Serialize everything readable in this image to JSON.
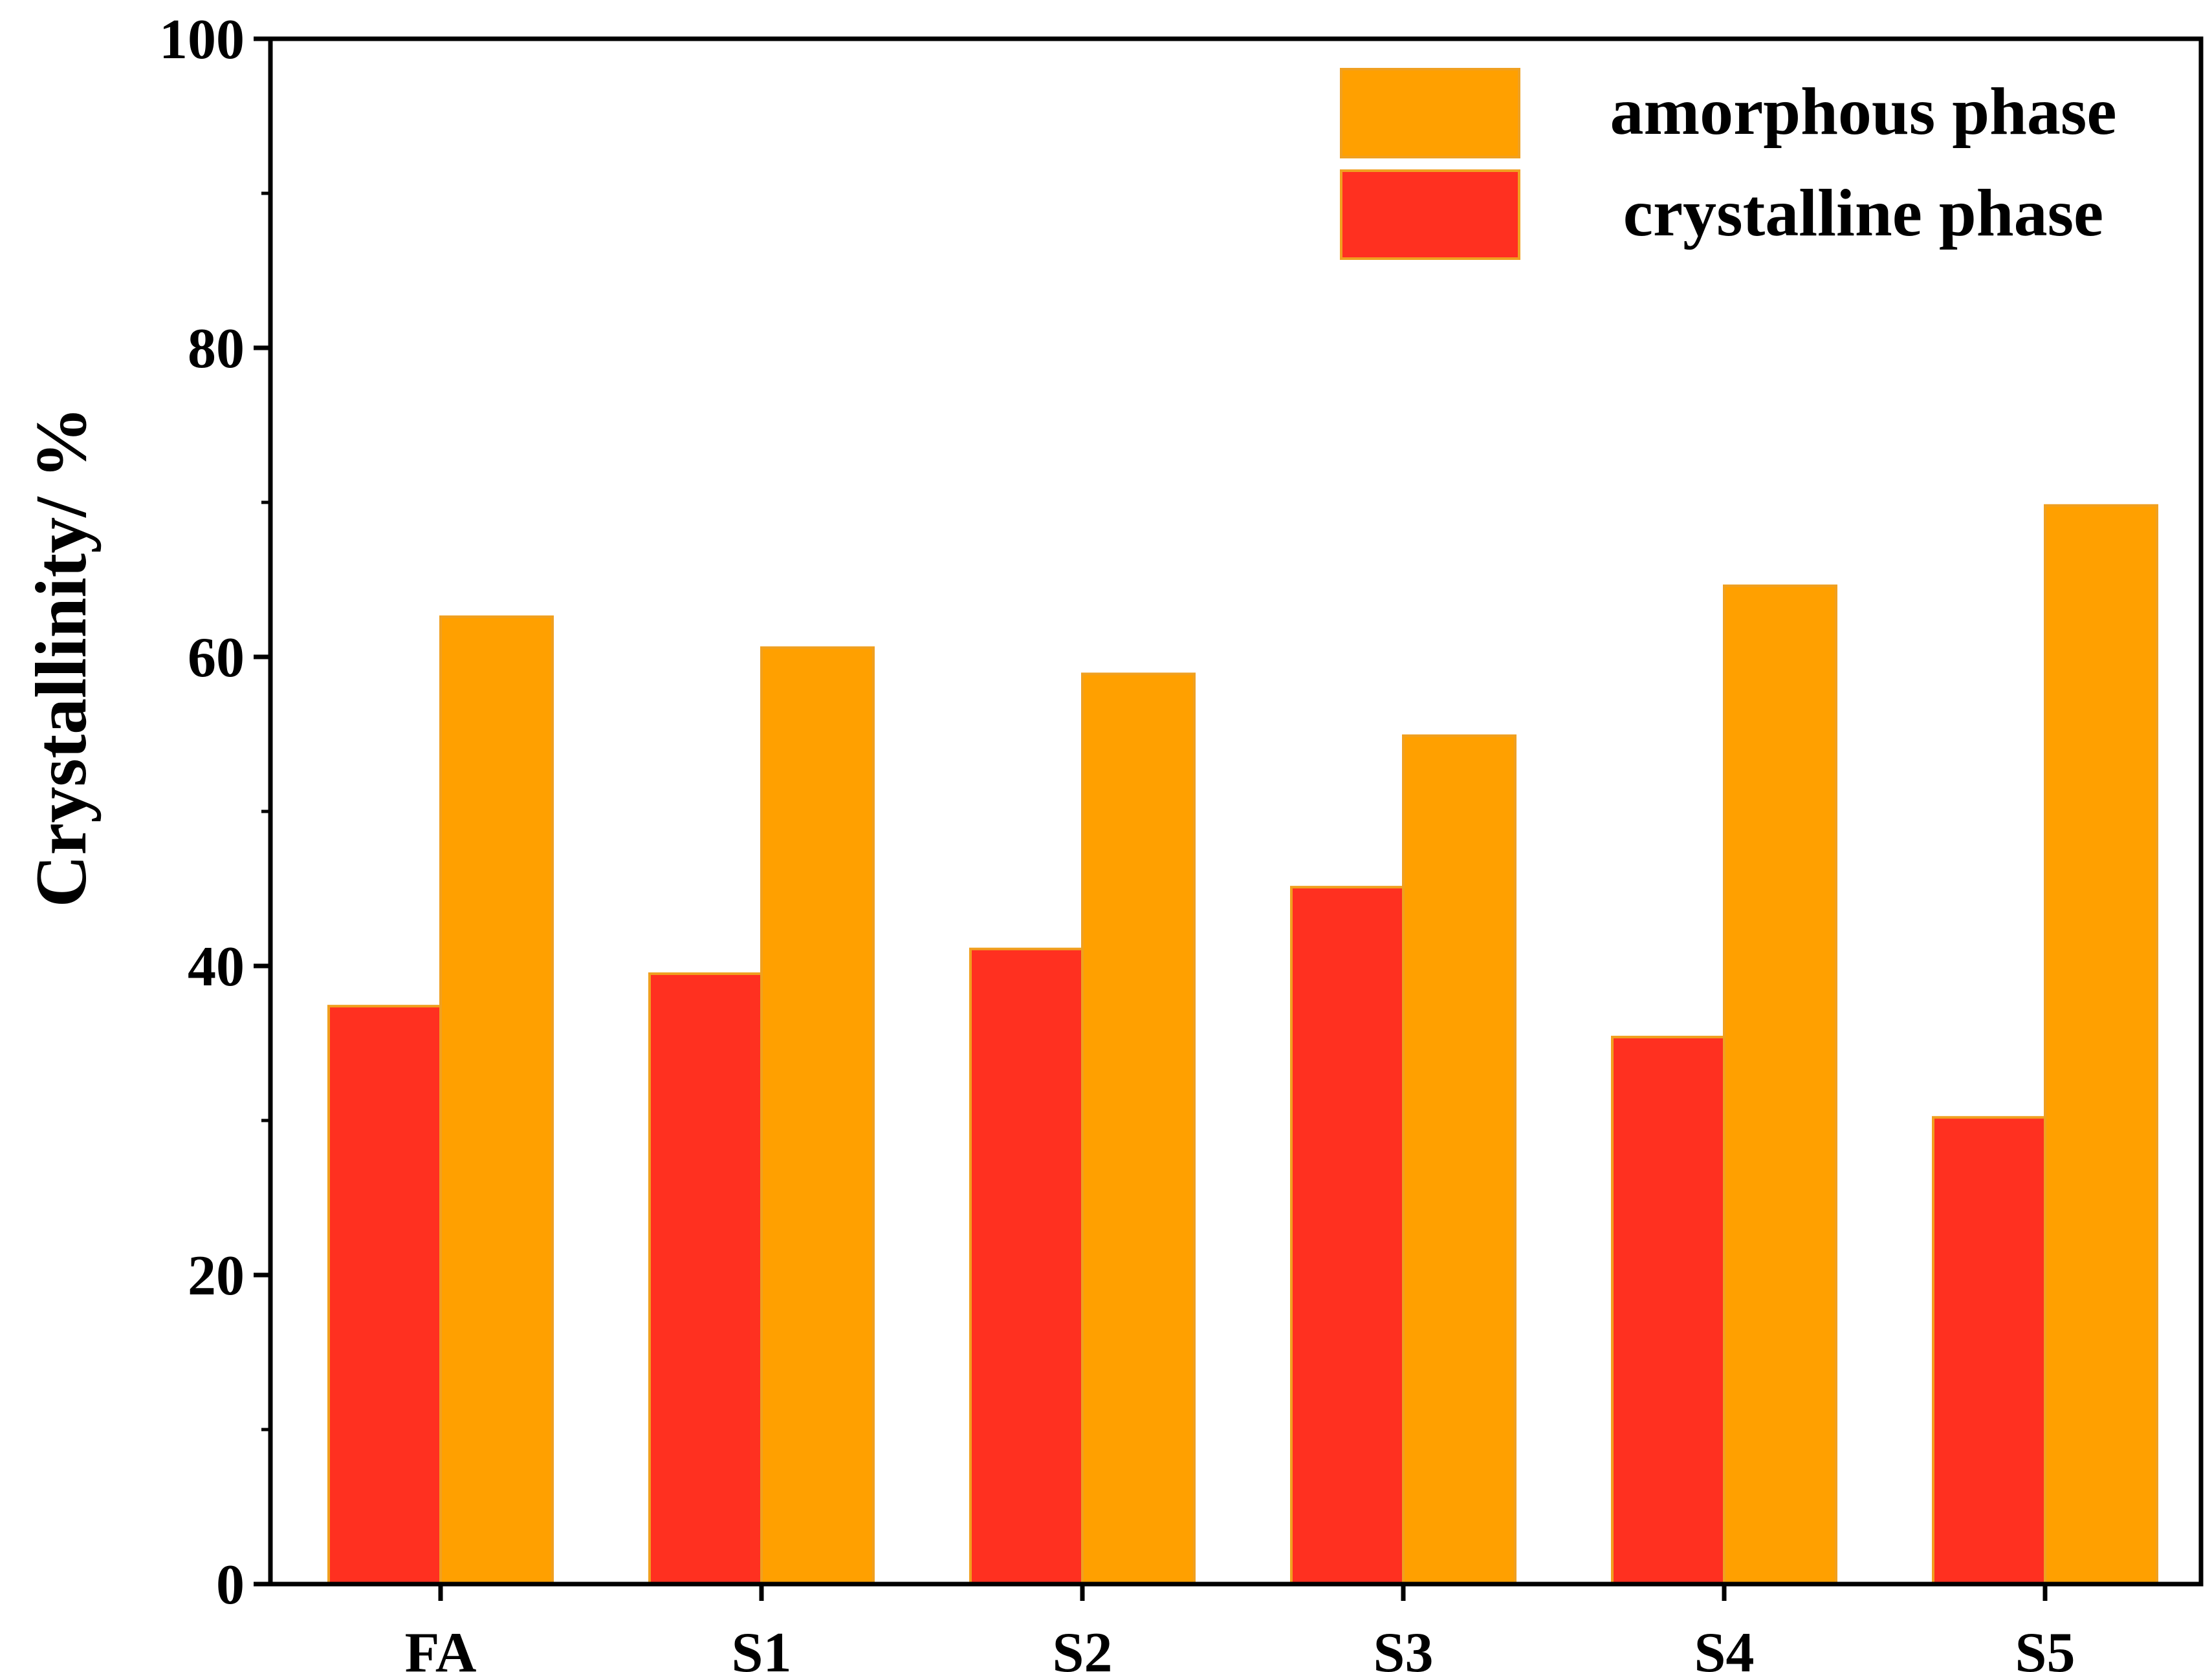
{
  "chart_data": {
    "type": "bar",
    "title": "",
    "xlabel": "",
    "ylabel": "Crystallinity/ %",
    "ylim": [
      0,
      100
    ],
    "yticks": [
      0,
      20,
      40,
      60,
      80,
      100
    ],
    "grid": false,
    "legend_position": "top-right",
    "categories": [
      "FA",
      "S1",
      "S2",
      "S3",
      "S4",
      "S5"
    ],
    "series": [
      {
        "name": "crystalline phase",
        "color": "#ff3020",
        "values": [
          37.4,
          39.5,
          41.1,
          45.1,
          35.4,
          30.2
        ]
      },
      {
        "name": "amorphous phase",
        "color": "#ffa000",
        "values": [
          62.6,
          60.6,
          58.9,
          54.9,
          64.6,
          69.8
        ]
      }
    ],
    "legend_order": [
      "amorphous phase",
      "crystalline phase"
    ]
  }
}
